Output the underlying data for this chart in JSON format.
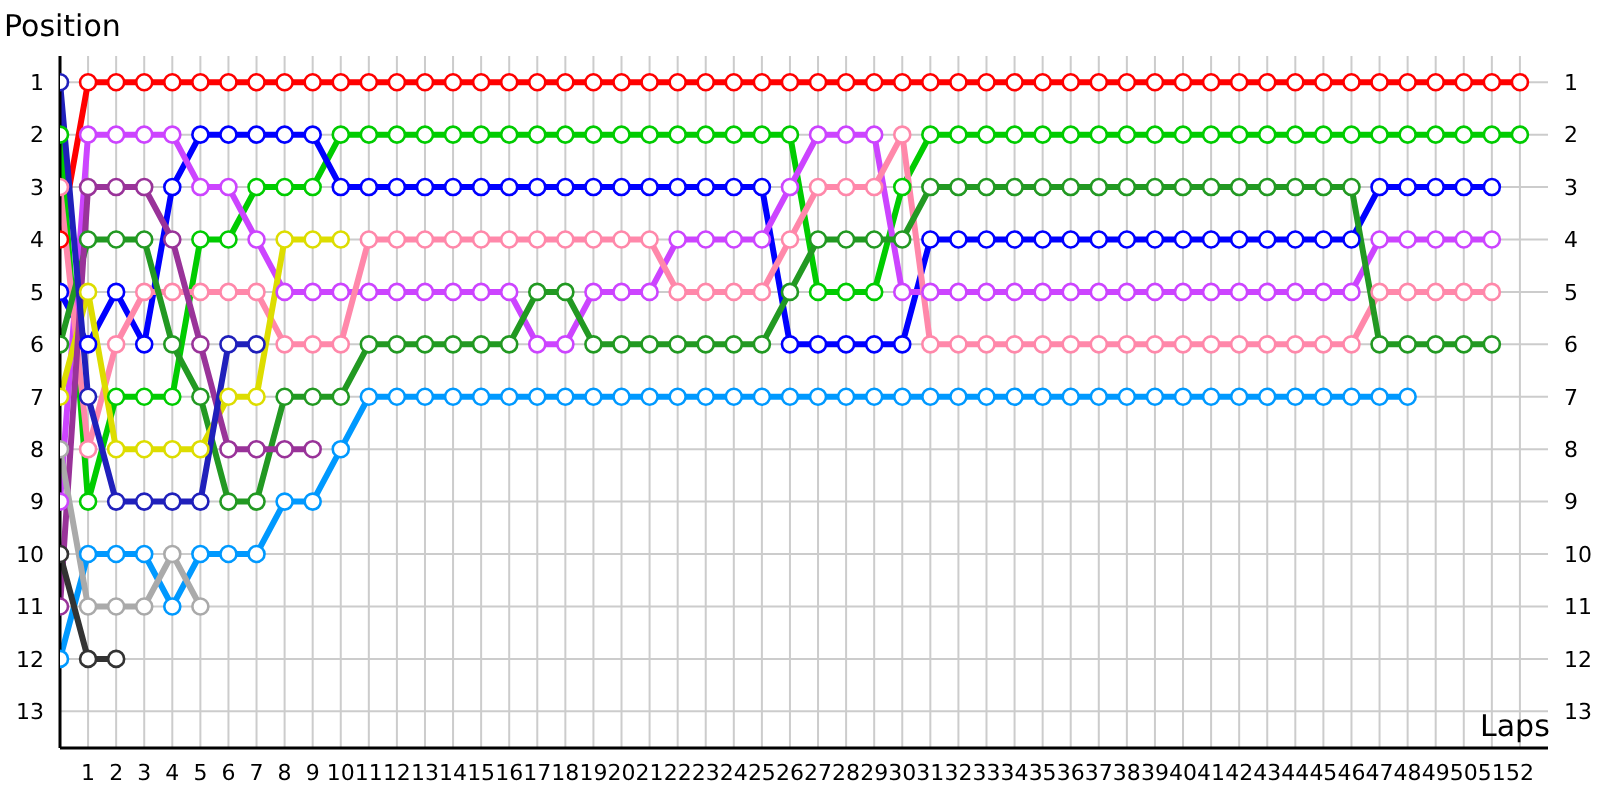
{
  "chart_data": {
    "type": "line",
    "xlabel": "Laps",
    "ylabel": "Position",
    "x": [
      0,
      1,
      2,
      3,
      4,
      5,
      6,
      7,
      8,
      9,
      10,
      11,
      12,
      13,
      14,
      15,
      16,
      17,
      18,
      19,
      20,
      21,
      22,
      23,
      24,
      25,
      26,
      27,
      28,
      29,
      30,
      31,
      32,
      33,
      34,
      35,
      36,
      37,
      38,
      39,
      40,
      41,
      42,
      43,
      44,
      45,
      46,
      47,
      48,
      49,
      50,
      51,
      52
    ],
    "xlim": [
      0,
      53
    ],
    "xticks": [
      1,
      2,
      3,
      4,
      5,
      6,
      7,
      8,
      9,
      10,
      11,
      12,
      13,
      14,
      15,
      16,
      17,
      18,
      19,
      20,
      21,
      22,
      23,
      24,
      25,
      26,
      27,
      28,
      29,
      30,
      31,
      32,
      33,
      34,
      35,
      36,
      37,
      38,
      39,
      40,
      41,
      42,
      43,
      44,
      45,
      46,
      47,
      48,
      49,
      50,
      51,
      52
    ],
    "ylim": [
      13.7,
      0.5
    ],
    "yticks": [
      1,
      2,
      3,
      4,
      5,
      6,
      7,
      8,
      9,
      10,
      11,
      12,
      13
    ],
    "y2lim": [
      13.7,
      0.5
    ],
    "y2ticks": [
      1,
      2,
      3,
      4,
      5,
      6,
      7,
      8,
      9,
      10,
      11,
      12,
      13
    ],
    "grid": true,
    "legend": false,
    "marker": "circle",
    "line_style": "solid",
    "series": [
      {
        "color": "#ff0000",
        "values": [
          4,
          1,
          1,
          1,
          1,
          1,
          1,
          1,
          1,
          1,
          1,
          1,
          1,
          1,
          1,
          1,
          1,
          1,
          1,
          1,
          1,
          1,
          1,
          1,
          1,
          1,
          1,
          1,
          1,
          1,
          1,
          1,
          1,
          1,
          1,
          1,
          1,
          1,
          1,
          1,
          1,
          1,
          1,
          1,
          1,
          1,
          1,
          1,
          1,
          1,
          1,
          1,
          1
        ]
      },
      {
        "color": "#00cc00",
        "values": [
          2,
          9,
          7,
          7,
          7,
          4,
          4,
          3,
          3,
          3,
          2,
          2,
          2,
          2,
          2,
          2,
          2,
          2,
          2,
          2,
          2,
          2,
          2,
          2,
          2,
          2,
          2,
          5,
          5,
          5,
          3,
          2,
          2,
          2,
          2,
          2,
          2,
          2,
          2,
          2,
          2,
          2,
          2,
          2,
          2,
          2,
          2,
          2,
          2,
          2,
          2,
          2,
          2
        ]
      },
      {
        "color": "#0000ff",
        "values": [
          5,
          6,
          5,
          6,
          3,
          2,
          2,
          2,
          2,
          2,
          3,
          3,
          3,
          3,
          3,
          3,
          3,
          3,
          3,
          3,
          3,
          3,
          3,
          3,
          3,
          3,
          6,
          6,
          6,
          6,
          6,
          4,
          4,
          4,
          4,
          4,
          4,
          4,
          4,
          4,
          4,
          4,
          4,
          4,
          4,
          4,
          4,
          3,
          3,
          3,
          3,
          3,
          null
        ]
      },
      {
        "color": "#cc44ff",
        "values": [
          9,
          2,
          2,
          2,
          2,
          3,
          3,
          4,
          5,
          5,
          5,
          5,
          5,
          5,
          5,
          5,
          5,
          6,
          6,
          5,
          5,
          5,
          4,
          4,
          4,
          4,
          3,
          2,
          2,
          2,
          5,
          5,
          5,
          5,
          5,
          5,
          5,
          5,
          5,
          5,
          5,
          5,
          5,
          5,
          5,
          5,
          5,
          4,
          4,
          4,
          4,
          4,
          null
        ]
      },
      {
        "color": "#ff88aa",
        "values": [
          3,
          8,
          6,
          5,
          5,
          5,
          5,
          5,
          6,
          6,
          6,
          4,
          4,
          4,
          4,
          4,
          4,
          4,
          4,
          4,
          4,
          4,
          5,
          5,
          5,
          5,
          4,
          3,
          3,
          3,
          2,
          6,
          6,
          6,
          6,
          6,
          6,
          6,
          6,
          6,
          6,
          6,
          6,
          6,
          6,
          6,
          6,
          5,
          5,
          5,
          5,
          5,
          null
        ]
      },
      {
        "color": "#229922",
        "values": [
          6,
          4,
          4,
          4,
          6,
          7,
          9,
          9,
          7,
          7,
          7,
          6,
          6,
          6,
          6,
          6,
          6,
          5,
          5,
          6,
          6,
          6,
          6,
          6,
          6,
          6,
          5,
          4,
          4,
          4,
          4,
          3,
          3,
          3,
          3,
          3,
          3,
          3,
          3,
          3,
          3,
          3,
          3,
          3,
          3,
          3,
          3,
          6,
          6,
          6,
          6,
          6,
          null
        ]
      },
      {
        "color": "#0099ff",
        "values": [
          12,
          10,
          10,
          10,
          11,
          10,
          10,
          10,
          9,
          9,
          8,
          7,
          7,
          7,
          7,
          7,
          7,
          7,
          7,
          7,
          7,
          7,
          7,
          7,
          7,
          7,
          7,
          7,
          7,
          7,
          7,
          7,
          7,
          7,
          7,
          7,
          7,
          7,
          7,
          7,
          7,
          7,
          7,
          7,
          7,
          7,
          7,
          7,
          7,
          null,
          null,
          null,
          null
        ]
      },
      {
        "color": "#dddd00",
        "values": [
          7,
          5,
          8,
          8,
          8,
          8,
          7,
          7,
          4,
          4,
          4,
          null,
          null,
          null,
          null,
          null,
          null,
          null,
          null,
          null,
          null,
          null,
          null,
          null,
          null,
          null,
          null,
          null,
          null,
          null,
          null,
          null,
          null,
          null,
          null,
          null,
          null,
          null,
          null,
          null,
          null,
          null,
          null,
          null,
          null,
          null,
          null,
          null,
          null,
          null,
          null,
          null,
          null
        ]
      },
      {
        "color": "#993399",
        "values": [
          11,
          3,
          3,
          3,
          4,
          6,
          8,
          8,
          8,
          8,
          null,
          null,
          null,
          null,
          null,
          null,
          null,
          null,
          null,
          null,
          null,
          null,
          null,
          null,
          null,
          null,
          null,
          null,
          null,
          null,
          null,
          null,
          null,
          null,
          null,
          null,
          null,
          null,
          null,
          null,
          null,
          null,
          null,
          null,
          null,
          null,
          null,
          null,
          null,
          null,
          null,
          null,
          null
        ]
      },
      {
        "color": "#2020bb",
        "values": [
          1,
          7,
          9,
          9,
          9,
          9,
          6,
          6,
          null,
          null,
          null,
          null,
          null,
          null,
          null,
          null,
          null,
          null,
          null,
          null,
          null,
          null,
          null,
          null,
          null,
          null,
          null,
          null,
          null,
          null,
          null,
          null,
          null,
          null,
          null,
          null,
          null,
          null,
          null,
          null,
          null,
          null,
          null,
          null,
          null,
          null,
          null,
          null,
          null,
          null,
          null,
          null,
          null
        ]
      },
      {
        "color": "#aaaaaa",
        "values": [
          8,
          11,
          11,
          11,
          10,
          11,
          null,
          null,
          null,
          null,
          null,
          null,
          null,
          null,
          null,
          null,
          null,
          null,
          null,
          null,
          null,
          null,
          null,
          null,
          null,
          null,
          null,
          null,
          null,
          null,
          null,
          null,
          null,
          null,
          null,
          null,
          null,
          null,
          null,
          null,
          null,
          null,
          null,
          null,
          null,
          null,
          null,
          null,
          null,
          null,
          null,
          null,
          null
        ]
      },
      {
        "color": "#333333",
        "values": [
          10,
          12,
          12,
          null,
          null,
          null,
          null,
          null,
          null,
          null,
          null,
          null,
          null,
          null,
          null,
          null,
          null,
          null,
          null,
          null,
          null,
          null,
          null,
          null,
          null,
          null,
          null,
          null,
          null,
          null,
          null,
          null,
          null,
          null,
          null,
          null,
          null,
          null,
          null,
          null,
          null,
          null,
          null,
          null,
          null,
          null,
          null,
          null,
          null,
          null,
          null,
          null,
          null
        ]
      }
    ]
  }
}
